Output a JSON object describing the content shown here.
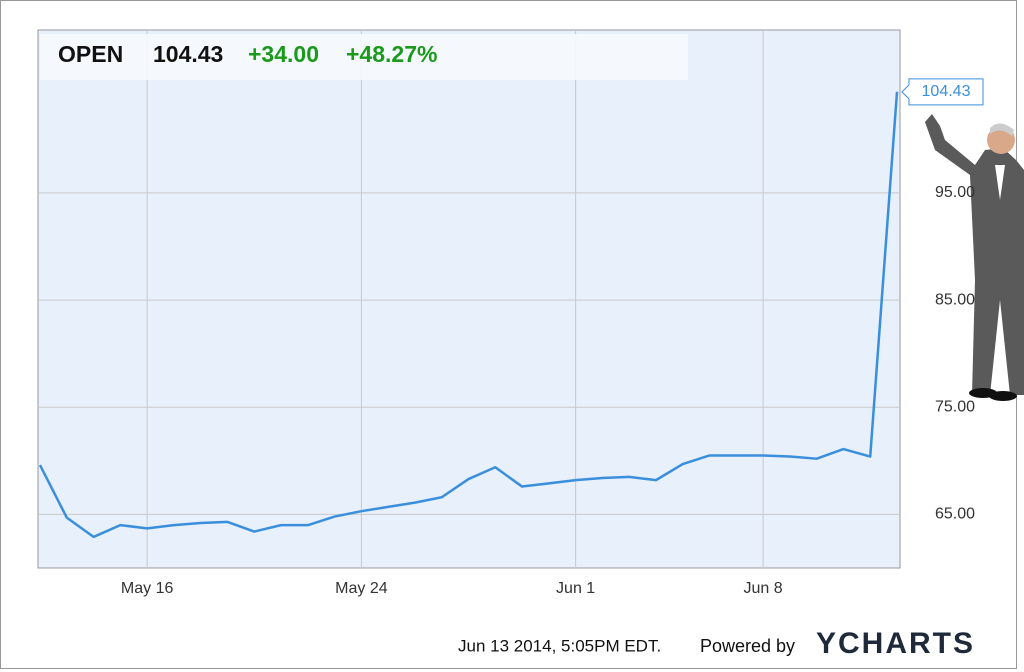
{
  "chart_data": {
    "type": "line",
    "header": {
      "symbol": "OPEN",
      "price": "104.43",
      "change": "+34.00",
      "change_pct": "+48.27%"
    },
    "categories": [
      null,
      null,
      null,
      null,
      "May 16",
      null,
      null,
      null,
      null,
      null,
      null,
      null,
      "May 24",
      null,
      null,
      null,
      null,
      null,
      null,
      null,
      "Jun 1",
      null,
      null,
      null,
      null,
      null,
      null,
      "Jun 8",
      null,
      null,
      null,
      null,
      null
    ],
    "values": [
      69.6,
      64.7,
      62.9,
      64.0,
      63.7,
      64.0,
      64.2,
      64.3,
      63.4,
      64.0,
      64.0,
      64.8,
      65.3,
      65.7,
      66.1,
      66.6,
      68.3,
      69.4,
      67.6,
      67.9,
      68.2,
      68.4,
      68.5,
      68.2,
      69.7,
      70.5,
      70.5,
      70.5,
      70.4,
      70.2,
      71.1,
      70.4,
      104.43
    ],
    "value_labels": [
      null,
      null,
      null,
      null,
      null,
      null,
      null,
      null,
      null,
      null,
      null,
      null,
      null,
      null,
      null,
      null,
      null,
      null,
      null,
      null,
      null,
      null,
      null,
      null,
      null,
      null,
      null,
      null,
      null,
      null,
      null,
      null,
      "104.43"
    ],
    "color": "#3a8fdc",
    "ylim": [
      60,
      110.2
    ],
    "yticks": [
      {
        "value": 65,
        "label": "65.00"
      },
      {
        "value": 75,
        "label": "75.00"
      },
      {
        "value": 85,
        "label": "85.00"
      },
      {
        "value": 95,
        "label": "95.00"
      }
    ],
    "grid": true,
    "footer": {
      "timestamp": "Jun 13 2014, 5:05PM EDT.",
      "powered": "Powered by",
      "brand": "YCHARTS"
    }
  }
}
